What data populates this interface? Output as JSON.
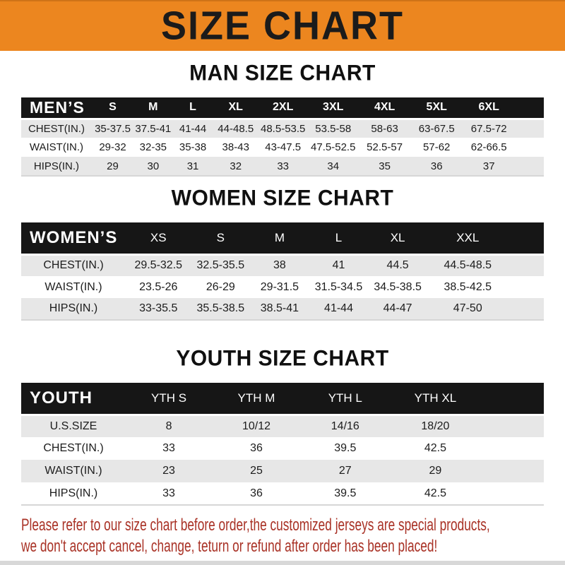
{
  "banner": {
    "title": "SIZE CHART"
  },
  "sections": [
    {
      "heading": "MAN SIZE CHART",
      "table": {
        "header_label": "MEN’S",
        "columns": [
          "S",
          "M",
          "L",
          "XL",
          "2XL",
          "3XL",
          "4XL",
          "5XL",
          "6XL"
        ],
        "rows": [
          {
            "label": "CHEST(IN.)",
            "values": [
              "35-37.5",
              "37.5-41",
              "41-44",
              "44-48.5",
              "48.5-53.5",
              "53.5-58",
              "58-63",
              "63-67.5",
              "67.5-72"
            ]
          },
          {
            "label": "WAIST(IN.)",
            "values": [
              "29-32",
              "32-35",
              "35-38",
              "38-43",
              "43-47.5",
              "47.5-52.5",
              "52.5-57",
              "57-62",
              "62-66.5"
            ]
          },
          {
            "label": "HIPS(IN.)",
            "values": [
              "29",
              "30",
              "31",
              "32",
              "33",
              "34",
              "35",
              "36",
              "37"
            ]
          }
        ]
      }
    },
    {
      "heading": "WOMEN SIZE CHART",
      "table": {
        "header_label": "WOMEN’S",
        "columns": [
          "XS",
          "S",
          "M",
          "L",
          "XL",
          "XXL"
        ],
        "rows": [
          {
            "label": "CHEST(IN.)",
            "values": [
              "29.5-32.5",
              "32.5-35.5",
              "38",
              "41",
              "44.5",
              "44.5-48.5"
            ]
          },
          {
            "label": "WAIST(IN.)",
            "values": [
              "23.5-26",
              "26-29",
              "29-31.5",
              "31.5-34.5",
              "34.5-38.5",
              "38.5-42.5"
            ]
          },
          {
            "label": "HIPS(IN.)",
            "values": [
              "33-35.5",
              "35.5-38.5",
              "38.5-41",
              "41-44",
              "44-47",
              "47-50"
            ]
          }
        ]
      }
    },
    {
      "heading": "YOUTH SIZE CHART",
      "table": {
        "header_label": "YOUTH",
        "columns": [
          "YTH S",
          "YTH M",
          "YTH L",
          "YTH XL"
        ],
        "rows": [
          {
            "label": "U.S.SIZE",
            "values": [
              "8",
              "10/12",
              "14/16",
              "18/20"
            ]
          },
          {
            "label": "CHEST(IN.)",
            "values": [
              "33",
              "36",
              "39.5",
              "42.5"
            ]
          },
          {
            "label": "WAIST(IN.)",
            "values": [
              "23",
              "25",
              "27",
              "29"
            ]
          },
          {
            "label": "HIPS(IN.)",
            "values": [
              "33",
              "36",
              "39.5",
              "42.5"
            ]
          }
        ]
      }
    }
  ],
  "footer": {
    "line1": "Please refer to our size chart before order,the customized jerseys are special products,",
    "line2": "we don't accept cancel, change, teturn or refund after order has been placed!"
  },
  "colors": {
    "banner_bg": "#EC861F",
    "banner_text": "#1B1B1B",
    "header_bar_bg": "#161616",
    "row_gray": "#E7E7E7",
    "note_red": "#A93226"
  }
}
